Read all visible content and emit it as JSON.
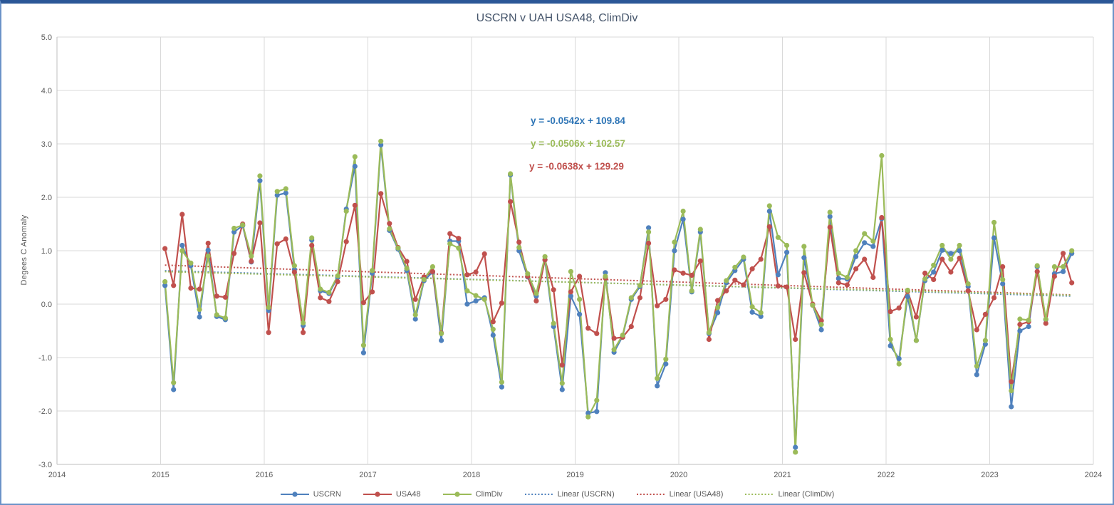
{
  "window": {
    "top_bar_color": "#2b5797",
    "border_color": "#6b93c8",
    "background": "#ffffff"
  },
  "chart": {
    "title": "USCRN v UAH USA48, ClimDiv",
    "title_color": "#44546a",
    "y_axis": {
      "label": "Degees  C Anomaly",
      "ticks": [
        "5.0",
        "4.0",
        "3.0",
        "2.0",
        "1.0",
        "0.0",
        "-1.0",
        "-2.0",
        "-3.0"
      ],
      "tick_color": "#595959"
    },
    "x_axis": {
      "ticks": [
        "2014",
        "2015",
        "2016",
        "2017",
        "2018",
        "2019",
        "2020",
        "2021",
        "2022",
        "2023",
        "2024"
      ],
      "tick_color": "#595959"
    },
    "equations": [
      {
        "text": "y = -0.0542x + 109.84",
        "color": "#2e75b6",
        "series": "USCRN"
      },
      {
        "text": "y = -0.0506x + 102.57",
        "color": "#9bbb59",
        "series": "ClimDiv"
      },
      {
        "text": "y = -0.0638x + 129.29",
        "color": "#c0504d",
        "series": "USA48"
      }
    ],
    "legend": [
      {
        "label": "USCRN",
        "color": "#4f81bd",
        "style": "solid-marker"
      },
      {
        "label": "USA48",
        "color": "#c0504d",
        "style": "solid-marker"
      },
      {
        "label": "ClimDiv",
        "color": "#9bbb59",
        "style": "solid-marker"
      },
      {
        "label": "Linear (USCRN)",
        "color": "#4f81bd",
        "style": "dotted"
      },
      {
        "label": "Linear (USA48)",
        "color": "#c0504d",
        "style": "dotted"
      },
      {
        "label": "Linear (ClimDiv)",
        "color": "#9bbb59",
        "style": "dotted"
      }
    ],
    "gridline_color": "#d9d9d9",
    "axis_line_color": "#bfbfbf"
  },
  "chart_data": {
    "type": "line",
    "title": "USCRN v UAH USA48, ClimDiv",
    "ylabel": "Degees C Anomaly",
    "x_start": "2015-01",
    "x_end": "2023-10",
    "x_freq": "monthly",
    "x_axis_range_years": [
      2014,
      2024
    ],
    "ylim": [
      -3.0,
      5.0
    ],
    "grid": true,
    "legend_position": "bottom",
    "marker": "circle",
    "series": [
      {
        "name": "USCRN",
        "color": "#4f81bd",
        "values": [
          0.35,
          -1.6,
          1.1,
          0.72,
          -0.24,
          1.01,
          -0.23,
          -0.29,
          1.35,
          1.47,
          0.79,
          2.31,
          -0.12,
          2.04,
          2.08,
          0.65,
          -0.4,
          1.2,
          0.25,
          0.2,
          0.5,
          1.78,
          2.58,
          -0.91,
          0.58,
          2.98,
          1.38,
          1.03,
          0.63,
          -0.28,
          0.44,
          0.6,
          -0.68,
          1.18,
          1.18,
          0.0,
          0.06,
          0.12,
          -0.58,
          -1.55,
          2.42,
          1.0,
          0.51,
          0.15,
          0.83,
          -0.42,
          -1.6,
          0.15,
          -0.19,
          -2.04,
          -2.01,
          0.59,
          -0.9,
          -0.6,
          0.09,
          0.33,
          1.43,
          -1.53,
          -1.12,
          1.0,
          1.59,
          0.23,
          1.35,
          -0.55,
          -0.16,
          0.4,
          0.63,
          0.84,
          -0.15,
          -0.23,
          1.74,
          0.55,
          0.97,
          -2.68,
          0.87,
          -0.02,
          -0.48,
          1.64,
          0.48,
          0.47,
          0.89,
          1.15,
          1.08,
          1.6,
          -0.78,
          -1.02,
          0.14,
          -0.68,
          0.44,
          0.6,
          1.01,
          0.95,
          1.0,
          0.33,
          -1.32,
          -0.75,
          1.24,
          0.38,
          -1.92,
          -0.5,
          -0.42,
          0.7,
          -0.29,
          0.57,
          0.61,
          0.95
        ]
      },
      {
        "name": "USA48",
        "color": "#c0504d",
        "values": [
          1.04,
          0.35,
          1.68,
          0.3,
          0.28,
          1.14,
          0.15,
          0.13,
          0.95,
          1.5,
          0.8,
          1.52,
          -0.53,
          1.13,
          1.22,
          0.6,
          -0.53,
          1.1,
          0.12,
          0.05,
          0.42,
          1.17,
          1.85,
          0.03,
          0.23,
          2.07,
          1.51,
          1.06,
          0.8,
          0.09,
          0.51,
          0.61,
          -0.54,
          1.32,
          1.23,
          0.55,
          0.6,
          0.94,
          -0.33,
          0.02,
          1.92,
          1.16,
          0.52,
          0.06,
          0.83,
          0.27,
          -1.14,
          0.23,
          0.52,
          -0.45,
          -0.55,
          0.49,
          -0.64,
          -0.62,
          -0.42,
          0.12,
          1.14,
          -0.03,
          0.09,
          0.64,
          0.58,
          0.54,
          0.81,
          -0.66,
          0.07,
          0.25,
          0.45,
          0.36,
          0.66,
          0.84,
          1.45,
          0.34,
          0.32,
          -0.66,
          0.59,
          0.0,
          -0.31,
          1.44,
          0.4,
          0.36,
          0.66,
          0.84,
          0.5,
          1.62,
          -0.14,
          -0.07,
          0.24,
          -0.24,
          0.58,
          0.46,
          0.84,
          0.6,
          0.86,
          0.25,
          -0.48,
          -0.19,
          0.12,
          0.7,
          -1.45,
          -0.38,
          -0.33,
          0.61,
          -0.36,
          0.52,
          0.95,
          0.4
        ]
      },
      {
        "name": "ClimDiv",
        "color": "#9bbb59",
        "values": [
          0.42,
          -1.47,
          1.0,
          0.77,
          -0.1,
          0.9,
          -0.2,
          -0.26,
          1.42,
          1.48,
          0.9,
          2.4,
          -0.06,
          2.11,
          2.16,
          0.72,
          -0.35,
          1.24,
          0.28,
          0.22,
          0.53,
          1.74,
          2.76,
          -0.77,
          0.63,
          3.05,
          1.41,
          1.05,
          0.67,
          -0.2,
          0.46,
          0.7,
          -0.55,
          1.13,
          1.05,
          0.25,
          0.16,
          0.09,
          -0.47,
          -1.46,
          2.44,
          1.06,
          0.57,
          0.2,
          0.89,
          -0.36,
          -1.48,
          0.61,
          0.09,
          -2.11,
          -1.8,
          0.52,
          -0.85,
          -0.58,
          0.12,
          0.35,
          1.35,
          -1.39,
          -1.03,
          1.16,
          1.74,
          0.25,
          1.4,
          -0.53,
          -0.06,
          0.44,
          0.69,
          0.88,
          -0.05,
          -0.16,
          1.84,
          1.25,
          1.1,
          -2.77,
          1.08,
          -0.02,
          -0.38,
          1.72,
          0.58,
          0.5,
          1.0,
          1.32,
          1.18,
          2.78,
          -0.66,
          -1.12,
          0.26,
          -0.68,
          0.47,
          0.73,
          1.1,
          0.84,
          1.1,
          0.38,
          -1.16,
          -0.68,
          1.53,
          0.46,
          -1.62,
          -0.28,
          -0.3,
          0.72,
          -0.28,
          0.7,
          0.7,
          1.0
        ]
      }
    ],
    "trendlines": [
      {
        "name": "Linear (USCRN)",
        "color": "#4f81bd",
        "slope": -0.0542,
        "intercept": 109.84,
        "equation": "y = -0.0542x + 109.84"
      },
      {
        "name": "Linear (USA48)",
        "color": "#c0504d",
        "slope": -0.0638,
        "intercept": 129.29,
        "equation": "y = -0.0638x + 129.29"
      },
      {
        "name": "Linear (ClimDiv)",
        "color": "#9bbb59",
        "slope": -0.0506,
        "intercept": 102.57,
        "equation": "y = -0.0506x + 102.57"
      }
    ]
  }
}
